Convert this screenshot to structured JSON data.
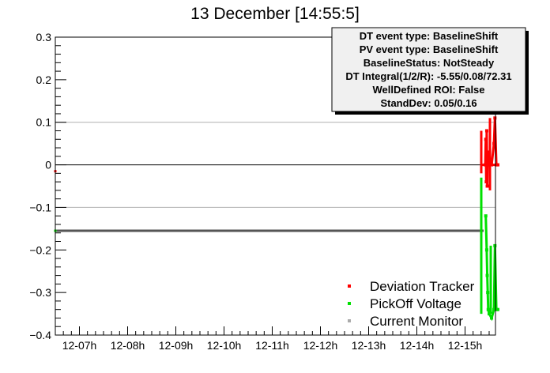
{
  "chart_data": {
    "type": "scatter",
    "title": "13 December [14:55:5]",
    "xlabel": "",
    "ylabel": "",
    "ylim": [
      -0.4,
      0.3
    ],
    "y_ticks": [
      "0.3",
      "0.2",
      "0.1",
      "0",
      "−0.1",
      "−0.2",
      "−0.3",
      "−0.4"
    ],
    "x_ticks": [
      "12-07h",
      "12-08h",
      "12-09h",
      "12-10h",
      "12-11h",
      "12-12h",
      "12-13h",
      "12-14h",
      "12-15h"
    ],
    "grid": "horizontal lines at 0.1, 0 and -0.1",
    "reference_lines": [
      0.0,
      -0.155
    ],
    "info_box": [
      "DT event type: BaselineShift",
      "PV event type: BaselineShift",
      "BaselineStatus: NotSteady",
      "DT Integral(1/2/R): -5.55/0.08/72.31",
      "WellDefined ROI: False",
      "StandDev: 0.05/0.16"
    ],
    "legend_position": "bottom-right",
    "series": [
      {
        "name": "Deviation Tracker",
        "color": "#ff0000",
        "points": [
          [
            6.5,
            -0.015
          ],
          [
            15.42,
            0.0
          ],
          [
            15.43,
            0.06
          ],
          [
            15.44,
            -0.04
          ],
          [
            15.45,
            0.08
          ],
          [
            15.46,
            -0.05
          ],
          [
            15.47,
            0.03
          ],
          [
            15.48,
            0.0
          ],
          [
            15.5,
            0.0
          ],
          [
            15.55,
            0.0
          ],
          [
            15.6,
            0.05
          ],
          [
            15.62,
            0.11
          ],
          [
            15.65,
            0.0
          ],
          [
            15.68,
            0.0
          ]
        ]
      },
      {
        "name": "PickOff Voltage",
        "color": "#00e000",
        "points": [
          [
            6.5,
            -0.155
          ],
          [
            15.43,
            -0.12
          ],
          [
            15.45,
            -0.2
          ],
          [
            15.46,
            -0.26
          ],
          [
            15.47,
            -0.3
          ],
          [
            15.48,
            -0.34
          ],
          [
            15.5,
            -0.35
          ],
          [
            15.55,
            -0.36
          ],
          [
            15.6,
            -0.34
          ],
          [
            15.62,
            -0.19
          ],
          [
            15.65,
            -0.34
          ],
          [
            15.68,
            -0.34
          ]
        ]
      },
      {
        "name": "Current Monitor",
        "color": "#aaaaaa",
        "points": []
      }
    ]
  }
}
